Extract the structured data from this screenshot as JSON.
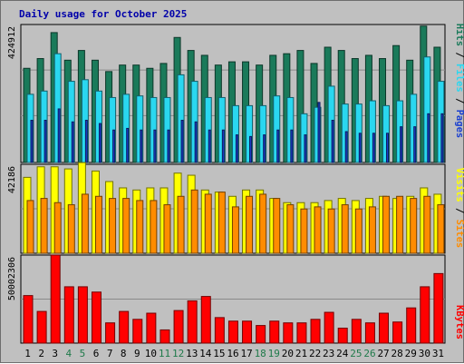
{
  "title": "Daily usage for October 2025",
  "colors": {
    "background": "#c0c0c0",
    "title": "#0000aa",
    "hits": "#1a7a5a",
    "files": "#2ad7f0",
    "pages": "#1a3fd0",
    "visits": "#ffff00",
    "sites": "#ff8c00",
    "kbytes": "#ff0000",
    "weekday_label": "#000000",
    "weekend_label": "#1f7a4a"
  },
  "legend": {
    "hits": "Hits",
    "files": "Files",
    "pages": "Pages",
    "sep": "/",
    "visits": "Visits",
    "sites": "Sites",
    "kbytes": "KBytes"
  },
  "chart_data": [
    {
      "type": "bar",
      "name": "hits-files-pages",
      "ymax_label": "424912",
      "ylim": [
        0,
        424912
      ],
      "categories": [
        "1",
        "2",
        "3",
        "4",
        "5",
        "6",
        "7",
        "8",
        "9",
        "10",
        "11",
        "12",
        "13",
        "14",
        "15",
        "16",
        "17",
        "18",
        "19",
        "20",
        "21",
        "22",
        "23",
        "24",
        "25",
        "26",
        "27",
        "28",
        "29",
        "30",
        "31"
      ],
      "weekend_days": [
        4,
        5,
        11,
        12,
        18,
        19,
        25,
        26
      ],
      "series": [
        {
          "name": "Hits",
          "values": [
            290000,
            320000,
            400000,
            315000,
            345000,
            315000,
            280000,
            300000,
            300000,
            290000,
            305000,
            385000,
            345000,
            330000,
            300000,
            310000,
            310000,
            300000,
            330000,
            335000,
            345000,
            305000,
            355000,
            345000,
            320000,
            330000,
            320000,
            360000,
            315000,
            420000,
            355000
          ]
        },
        {
          "name": "Files",
          "values": [
            210000,
            220000,
            335000,
            250000,
            255000,
            220000,
            200000,
            210000,
            205000,
            200000,
            200000,
            270000,
            250000,
            200000,
            200000,
            175000,
            175000,
            175000,
            205000,
            200000,
            150000,
            170000,
            235000,
            180000,
            180000,
            190000,
            175000,
            190000,
            210000,
            325000,
            250000
          ]
        },
        {
          "name": "Pages",
          "values": [
            130000,
            130000,
            165000,
            125000,
            130000,
            120000,
            100000,
            105000,
            100000,
            100000,
            100000,
            130000,
            125000,
            100000,
            100000,
            85000,
            80000,
            85000,
            100000,
            100000,
            85000,
            185000,
            130000,
            95000,
            90000,
            90000,
            90000,
            110000,
            110000,
            150000,
            150000
          ]
        }
      ]
    },
    {
      "type": "bar",
      "name": "visits-sites",
      "ymax_label": "42186",
      "ylim": [
        0,
        42186
      ],
      "categories": [
        "1",
        "2",
        "3",
        "4",
        "5",
        "6",
        "7",
        "8",
        "9",
        "10",
        "11",
        "12",
        "13",
        "14",
        "15",
        "16",
        "17",
        "18",
        "19",
        "20",
        "21",
        "22",
        "23",
        "24",
        "25",
        "26",
        "27",
        "28",
        "29",
        "30",
        "31"
      ],
      "series": [
        {
          "name": "Visits",
          "values": [
            36000,
            41000,
            41000,
            40000,
            43000,
            39000,
            34000,
            31000,
            30000,
            31000,
            31000,
            38000,
            37000,
            30000,
            29000,
            27000,
            30000,
            30000,
            26000,
            24000,
            24000,
            24000,
            25000,
            26000,
            25000,
            26000,
            27000,
            26000,
            27000,
            31000,
            28000
          ]
        },
        {
          "name": "Sites",
          "values": [
            25000,
            26000,
            24000,
            23000,
            28000,
            27000,
            26000,
            26000,
            25000,
            25000,
            23000,
            27000,
            30000,
            28000,
            29000,
            22000,
            27000,
            28000,
            26000,
            23000,
            21000,
            22000,
            21000,
            23000,
            21000,
            22000,
            27000,
            27000,
            26000,
            27000,
            23000
          ]
        }
      ]
    },
    {
      "type": "bar",
      "name": "kbytes",
      "ymax_label": "50002306",
      "ylim": [
        0,
        50002306
      ],
      "categories": [
        "1",
        "2",
        "3",
        "4",
        "5",
        "6",
        "7",
        "8",
        "9",
        "10",
        "11",
        "12",
        "13",
        "14",
        "15",
        "16",
        "17",
        "18",
        "19",
        "20",
        "21",
        "22",
        "23",
        "24",
        "25",
        "26",
        "27",
        "28",
        "29",
        "30",
        "31"
      ],
      "series": [
        {
          "name": "KBytes",
          "values": [
            27000000,
            18000000,
            50000000,
            32000000,
            32000000,
            29000000,
            11500000,
            18000000,
            13500000,
            17000000,
            7500000,
            18500000,
            24000000,
            26500000,
            14500000,
            12500000,
            12500000,
            10000000,
            12500000,
            11500000,
            11500000,
            13500000,
            17500000,
            8500000,
            13500000,
            11500000,
            17000000,
            12000000,
            20000000,
            32000000,
            39500000
          ]
        }
      ]
    }
  ]
}
